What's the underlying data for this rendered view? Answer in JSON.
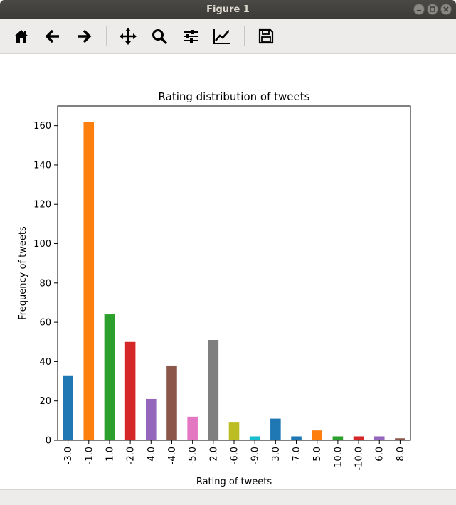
{
  "window": {
    "title": "Figure 1"
  },
  "toolbar": {
    "buttons": [
      {
        "icon": "home-icon"
      },
      {
        "icon": "back-arrow-icon"
      },
      {
        "icon": "forward-arrow-icon"
      },
      {
        "icon": "pan-move-icon"
      },
      {
        "icon": "zoom-magnifier-icon"
      },
      {
        "icon": "configure-subplots-icon"
      },
      {
        "icon": "edit-axes-icon"
      },
      {
        "icon": "save-floppy-icon"
      }
    ]
  },
  "chart_data": {
    "type": "bar",
    "title": "Rating distribution of tweets",
    "xlabel": "Rating of tweets",
    "ylabel": "Frequency of tweets",
    "ylim": [
      0,
      170
    ],
    "yticks": [
      0,
      20,
      40,
      60,
      80,
      100,
      120,
      140,
      160
    ],
    "grid": false,
    "categories": [
      "-3.0",
      "-1.0",
      "1.0",
      "-2.0",
      "4.0",
      "-4.0",
      "-5.0",
      "2.0",
      "-6.0",
      "-9.0",
      "3.0",
      "-7.0",
      "5.0",
      "10.0",
      "-10.0",
      "6.0",
      "8.0"
    ],
    "values": [
      33,
      162,
      64,
      50,
      21,
      38,
      12,
      51,
      9,
      2,
      11,
      2,
      5,
      2,
      2,
      2,
      1
    ],
    "colors": [
      "#1f77b4",
      "#ff7f0e",
      "#2ca02c",
      "#d62728",
      "#9467bd",
      "#8c564b",
      "#e377c2",
      "#7f7f7f",
      "#bcbd22",
      "#17becf",
      "#1f77b4",
      "#1f77b4",
      "#ff7f0e",
      "#2ca02c",
      "#d62728",
      "#9467bd",
      "#8c564b"
    ]
  }
}
